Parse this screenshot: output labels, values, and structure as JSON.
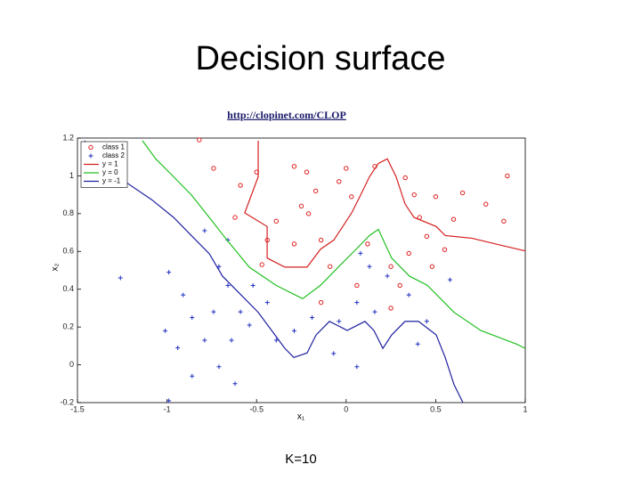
{
  "chart_data": {
    "type": "scatter",
    "title": "Decision surface",
    "subtitle": "http://clopinet.com/CLOP",
    "annotation": "K=10",
    "x_label": "x₁",
    "y_label": "x₂",
    "xlim": [
      -1.5,
      1
    ],
    "ylim": [
      -0.2,
      1.2
    ],
    "xticks": [
      -1.5,
      -1,
      -0.5,
      0,
      0.5,
      1
    ],
    "yticks": [
      -0.2,
      0,
      0.2,
      0.4,
      0.6,
      0.8,
      1,
      1.2
    ],
    "legend": "upper-left",
    "series": [
      {
        "name": "class 1",
        "color": "#e02020",
        "mode": "markers",
        "marker": "o",
        "x": [
          -0.5,
          -0.29,
          -0.22,
          -0.17,
          -0.04,
          0.0,
          0.03,
          -0.21,
          -0.25,
          -0.39,
          -0.44,
          -0.47,
          -0.29,
          -0.14,
          -0.09,
          0.16,
          0.33,
          0.38,
          0.41,
          0.5,
          0.65,
          0.78,
          0.6,
          0.45,
          0.35,
          0.25,
          0.12,
          0.06,
          0.3,
          0.48,
          0.55,
          0.9,
          0.88,
          -0.74,
          -0.59,
          -0.62,
          -0.82,
          -0.14,
          0.25
        ],
        "y": [
          1.02,
          1.05,
          1.02,
          0.92,
          0.97,
          1.04,
          0.89,
          0.8,
          0.84,
          0.76,
          0.66,
          0.53,
          0.64,
          0.66,
          0.52,
          1.05,
          0.99,
          0.9,
          0.78,
          0.89,
          0.91,
          0.85,
          0.77,
          0.68,
          0.59,
          0.52,
          0.64,
          0.42,
          0.42,
          0.52,
          0.61,
          1.0,
          0.76,
          1.04,
          0.95,
          0.78,
          1.19,
          0.33,
          0.3
        ]
      },
      {
        "name": "class 2",
        "color": "#2030c0",
        "mode": "markers",
        "marker": "+",
        "x": [
          -1.26,
          -0.99,
          -0.91,
          -0.86,
          -1.01,
          -0.94,
          -0.79,
          -0.74,
          -0.86,
          -0.71,
          -0.62,
          -0.99,
          -0.64,
          -0.59,
          -0.71,
          -0.66,
          -0.52,
          -0.44,
          -0.54,
          -0.39,
          -0.29,
          -0.19,
          -0.04,
          0.06,
          0.16,
          0.13,
          0.08,
          0.23,
          0.35,
          0.45,
          0.58,
          0.4,
          0.06,
          -0.07,
          -0.79,
          -0.66
        ],
        "y": [
          0.46,
          0.49,
          0.37,
          0.25,
          0.18,
          0.09,
          0.13,
          0.28,
          -0.06,
          -0.01,
          -0.1,
          -0.19,
          0.13,
          0.28,
          0.52,
          0.42,
          0.42,
          0.33,
          0.21,
          0.13,
          0.18,
          0.25,
          0.23,
          0.33,
          0.28,
          0.52,
          0.59,
          0.47,
          0.37,
          0.23,
          0.45,
          0.11,
          -0.01,
          0.06,
          0.71,
          0.66
        ]
      },
      {
        "name": "y = 1",
        "color": "#d42020",
        "mode": "lines",
        "x": [
          -0.491,
          -0.491,
          -0.566,
          -0.441,
          -0.441,
          -0.342,
          -0.218,
          -0.143,
          -0.069,
          -0.019,
          0.031,
          0.081,
          0.13,
          0.18,
          0.23,
          0.279,
          0.329,
          0.379,
          0.503,
          0.553,
          0.702,
          0.851,
          1.0
        ],
        "y": [
          1.186,
          0.995,
          0.804,
          0.732,
          0.565,
          0.517,
          0.517,
          0.612,
          0.66,
          0.732,
          0.804,
          0.899,
          0.995,
          1.066,
          1.09,
          0.995,
          0.851,
          0.78,
          0.732,
          0.684,
          0.67,
          0.636,
          0.603
        ]
      },
      {
        "name": "y = 0",
        "color": "#20c020",
        "mode": "lines",
        "x": [
          -1.137,
          -1.063,
          -0.963,
          -0.864,
          -0.764,
          -0.665,
          -0.541,
          -0.392,
          -0.243,
          -0.143,
          -0.044,
          0.056,
          0.13,
          0.18,
          0.254,
          0.354,
          0.453,
          0.602,
          0.751,
          0.95,
          1.0
        ],
        "y": [
          1.186,
          1.09,
          0.995,
          0.899,
          0.78,
          0.66,
          0.517,
          0.421,
          0.35,
          0.421,
          0.517,
          0.612,
          0.684,
          0.717,
          0.565,
          0.469,
          0.421,
          0.278,
          0.182,
          0.11,
          0.087
        ]
      },
      {
        "name": "y = -1",
        "color": "#2020a0",
        "mode": "lines",
        "x": [
          -1.46,
          -1.386,
          -1.237,
          -1.087,
          -0.963,
          -0.864,
          -0.764,
          -0.69,
          -0.59,
          -0.491,
          -0.416,
          -0.342,
          -0.292,
          -0.218,
          -0.168,
          -0.093,
          0.006,
          0.105,
          0.155,
          0.205,
          0.254,
          0.329,
          0.404,
          0.503,
          0.553,
          0.602,
          0.652
        ],
        "y": [
          1.186,
          1.09,
          0.971,
          0.875,
          0.78,
          0.684,
          0.588,
          0.469,
          0.373,
          0.278,
          0.182,
          0.087,
          0.039,
          0.063,
          0.158,
          0.23,
          0.182,
          0.23,
          0.182,
          0.087,
          0.158,
          0.23,
          0.23,
          0.158,
          0.039,
          -0.104,
          -0.2
        ]
      }
    ]
  }
}
